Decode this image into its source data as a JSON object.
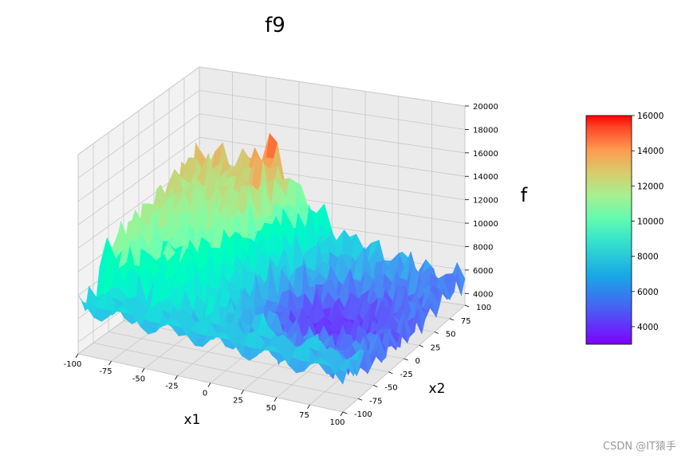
{
  "chart_data": {
    "type": "surface3d",
    "title": "f9",
    "xlabel": "x1",
    "ylabel": "x2",
    "zlabel": "f",
    "xlim": [
      -100,
      100
    ],
    "ylim": [
      -100,
      100
    ],
    "zlim": [
      3000,
      20000
    ],
    "xticks": [
      -100,
      -75,
      -50,
      -25,
      0,
      25,
      50,
      75,
      100
    ],
    "yticks": [
      -100,
      -75,
      -50,
      -25,
      0,
      25,
      50,
      75,
      100
    ],
    "zticks": [
      4000,
      6000,
      8000,
      10000,
      12000,
      14000,
      16000,
      18000,
      20000
    ],
    "colormap": "rainbow",
    "colorbar": {
      "min": 3000,
      "max": 16000,
      "ticks": [
        4000,
        6000,
        8000,
        10000,
        12000,
        14000,
        16000
      ]
    },
    "grid": true,
    "surface_shape": "oscillating ridges rising toward x1=-100 and toward the far corner; flat band near x2=-100"
  },
  "watermark": "CSDN @IT猿手"
}
